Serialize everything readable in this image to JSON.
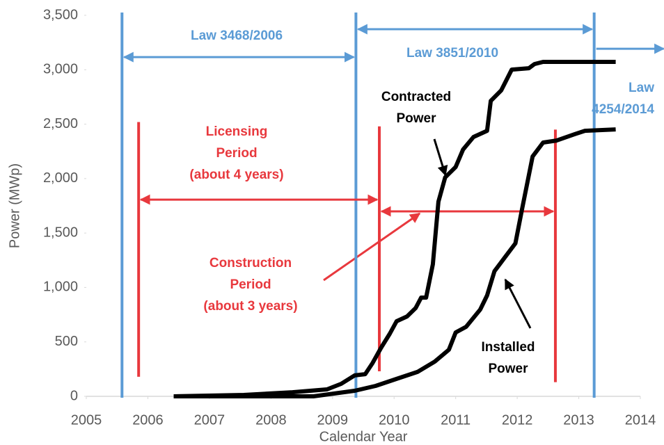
{
  "chart_data": {
    "type": "line",
    "x_label": "Calendar Year",
    "y_label": "Power (MWp)",
    "xlim": [
      2005,
      2014
    ],
    "xticks": [
      2005,
      2006,
      2007,
      2008,
      2009,
      2010,
      2011,
      2012,
      2013,
      2014
    ],
    "ylim": [
      0,
      3500
    ],
    "yticks": [
      0,
      500,
      {
        "value": 1000,
        "label": "1,000"
      },
      {
        "value": 1500,
        "label": "1,500"
      },
      {
        "value": 2000,
        "label": "2,000"
      },
      {
        "value": 2500,
        "label": "2,500"
      },
      {
        "value": 3000,
        "label": "3,000"
      },
      {
        "value": 3500,
        "label": "3,500"
      }
    ],
    "grid": false,
    "series": [
      {
        "label": [
          "Contracted",
          "Power"
        ],
        "color": "#000000",
        "x": [
          2006.42,
          2007.56,
          2008.35,
          2008.91,
          2009.14,
          2009.36,
          2009.53,
          2009.65,
          2009.79,
          2009.93,
          2010.04,
          2010.21,
          2010.35,
          2010.44,
          2010.52,
          2010.63,
          2010.72,
          2010.83,
          2011.0,
          2011.12,
          2011.29,
          2011.51,
          2011.57,
          2011.74,
          2011.91,
          2012.19,
          2012.28,
          2012.42,
          2013.6
        ],
        "values": [
          0,
          13,
          38,
          64,
          115,
          192,
          204,
          306,
          447,
          575,
          690,
          734,
          811,
          907,
          907,
          1213,
          1788,
          2011,
          2107,
          2267,
          2382,
          2439,
          2714,
          2810,
          3001,
          3014,
          3052,
          3072,
          3072
        ]
      },
      {
        "label": [
          "Installed",
          "Power"
        ],
        "color": "#000000",
        "x": [
          2006.42,
          2008.69,
          2009.36,
          2009.7,
          2010.04,
          2010.38,
          2010.66,
          2010.89,
          2011.0,
          2011.17,
          2011.4,
          2011.51,
          2011.63,
          2011.8,
          2011.97,
          2012.08,
          2012.25,
          2012.42,
          2012.64,
          2012.93,
          2013.1,
          2013.6
        ],
        "values": [
          0,
          0,
          51,
          96,
          160,
          224,
          319,
          428,
          587,
          639,
          798,
          926,
          1149,
          1277,
          1405,
          1724,
          2203,
          2331,
          2350,
          2407,
          2439,
          2452
        ]
      }
    ],
    "reference_lines": [
      {
        "x": 2005.58,
        "color": "#5b9bd5"
      },
      {
        "x": 2009.38,
        "color": "#5b9bd5"
      },
      {
        "x": 2013.25,
        "color": "#5b9bd5"
      },
      {
        "x": 2005.85,
        "ylim": [
          180,
          2520
        ],
        "color": "#e8383d"
      },
      {
        "x": 2009.76,
        "ylim": [
          230,
          2480
        ],
        "color": "#e8383d"
      },
      {
        "x": 2012.62,
        "ylim": [
          130,
          2450
        ],
        "color": "#e8383d"
      }
    ],
    "spans": [
      {
        "from": 2005.58,
        "to": 2009.38,
        "y": 3116,
        "color": "#5b9bd5"
      },
      {
        "from": 2009.38,
        "to": 2013.25,
        "y": 3372,
        "color": "#5b9bd5"
      },
      {
        "from": 2013.25,
        "to": 2014.38,
        "y": 3193,
        "color": "#5b9bd5",
        "open": true
      },
      {
        "from": 2005.85,
        "to": 2009.76,
        "y": 1807,
        "color": "#e8383d"
      },
      {
        "from": 2009.76,
        "to": 2012.62,
        "y": 1699,
        "color": "#e8383d"
      }
    ],
    "annotations": [
      {
        "text": [
          "Law 3468/2006"
        ],
        "color": "#5b9bd5"
      },
      {
        "text": [
          "Law 3851/2010"
        ],
        "color": "#5b9bd5"
      },
      {
        "text": [
          "Law",
          "4254/2014"
        ],
        "color": "#5b9bd5"
      },
      {
        "text": [
          "Licensing",
          "Period",
          "(about 4 years)"
        ],
        "color": "#e8383d"
      },
      {
        "text": [
          "Construction",
          "Period",
          "(about 3 years)"
        ],
        "color": "#e8383d"
      }
    ]
  }
}
